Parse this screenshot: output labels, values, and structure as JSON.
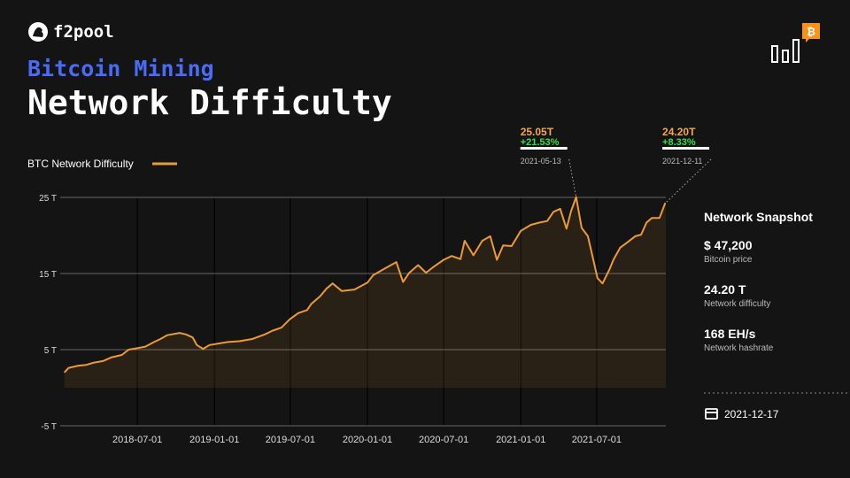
{
  "brand": "f2pool",
  "header": {
    "kicker": "Bitcoin Mining",
    "title": "Network Difficulty"
  },
  "chart_data": {
    "type": "line",
    "legend": "BTC Network Difficulty",
    "color": "#ee9a33",
    "grid": true,
    "xlim": [
      "2017-12-29",
      "2021-12-13"
    ],
    "xticks": [
      "2018-07-01",
      "2019-01-01",
      "2019-07-01",
      "2020-01-01",
      "2020-07-01",
      "2021-01-01",
      "2021-07-01"
    ],
    "ylim": [
      -5,
      25
    ],
    "yticks": [
      {
        "value": 25,
        "label": "25 T"
      },
      {
        "value": 15,
        "label": "15 T"
      },
      {
        "value": 5,
        "label": "5 T"
      },
      {
        "value": -5,
        "label": "-5 T"
      }
    ],
    "x": [
      "2018-01-08",
      "2018-01-18",
      "2018-02-10",
      "2018-03-01",
      "2018-03-20",
      "2018-04-10",
      "2018-05-01",
      "2018-05-25",
      "2018-06-10",
      "2018-07-01",
      "2018-07-20",
      "2018-08-10",
      "2018-08-25",
      "2018-09-10",
      "2018-10-10",
      "2018-10-25",
      "2018-11-10",
      "2018-11-20",
      "2018-12-05",
      "2018-12-20",
      "2019-01-10",
      "2019-02-01",
      "2019-03-01",
      "2019-04-01",
      "2019-05-01",
      "2019-05-20",
      "2019-06-10",
      "2019-06-30",
      "2019-07-20",
      "2019-08-10",
      "2019-08-20",
      "2019-09-10",
      "2019-09-25",
      "2019-10-10",
      "2019-11-01",
      "2019-12-01",
      "2020-01-01",
      "2020-01-15",
      "2020-02-10",
      "2020-03-10",
      "2020-03-26",
      "2020-04-10",
      "2020-05-01",
      "2020-05-20",
      "2020-06-05",
      "2020-07-01",
      "2020-07-20",
      "2020-08-10",
      "2020-08-20",
      "2020-09-10",
      "2020-10-01",
      "2020-10-20",
      "2020-11-05",
      "2020-11-20",
      "2020-12-10",
      "2021-01-01",
      "2021-01-25",
      "2021-02-15",
      "2021-03-05",
      "2021-03-20",
      "2021-04-05",
      "2021-04-20",
      "2021-05-01",
      "2021-05-13",
      "2021-05-26",
      "2021-06-10",
      "2021-07-03",
      "2021-07-15",
      "2021-08-01",
      "2021-08-10",
      "2021-08-26",
      "2021-09-10",
      "2021-10-01",
      "2021-10-15",
      "2021-10-28",
      "2021-11-10",
      "2021-11-28",
      "2021-12-11",
      "2021-12-13"
    ],
    "values": [
      2.0,
      2.6,
      2.9,
      3.0,
      3.3,
      3.5,
      4.0,
      4.3,
      5.0,
      5.2,
      5.4,
      6.0,
      6.4,
      6.9,
      7.2,
      7.0,
      6.6,
      5.6,
      5.1,
      5.6,
      5.8,
      6.0,
      6.1,
      6.4,
      7.0,
      7.5,
      7.9,
      9.0,
      9.8,
      10.2,
      11.0,
      12.0,
      13.0,
      13.7,
      12.7,
      12.9,
      13.8,
      14.8,
      15.6,
      16.5,
      13.9,
      15.1,
      16.1,
      15.1,
      15.8,
      16.8,
      17.3,
      16.9,
      19.3,
      17.4,
      19.3,
      19.9,
      16.8,
      18.7,
      18.6,
      20.6,
      21.4,
      21.7,
      21.9,
      23.1,
      23.5,
      20.9,
      23.2,
      25.05,
      21.0,
      19.9,
      14.4,
      13.7,
      15.6,
      16.8,
      18.4,
      19.0,
      19.9,
      20.1,
      21.7,
      22.3,
      22.3,
      24.2,
      24.2
    ],
    "annotations": [
      {
        "date": "2021-05-13",
        "value": 25.05,
        "label": "25.05T",
        "change": "+21.53%"
      },
      {
        "date": "2021-12-11",
        "value": 24.2,
        "label": "24.20T",
        "change": "+8.33%"
      }
    ]
  },
  "snapshot": {
    "title": "Network Snapshot",
    "items": [
      {
        "value": "$ 47,200",
        "label": "Bitcoin price"
      },
      {
        "value": "24.20 T",
        "label": "Network difficulty"
      },
      {
        "value": "168 EH/s",
        "label": "Network hashrate"
      }
    ],
    "date": "2021-12-17"
  }
}
